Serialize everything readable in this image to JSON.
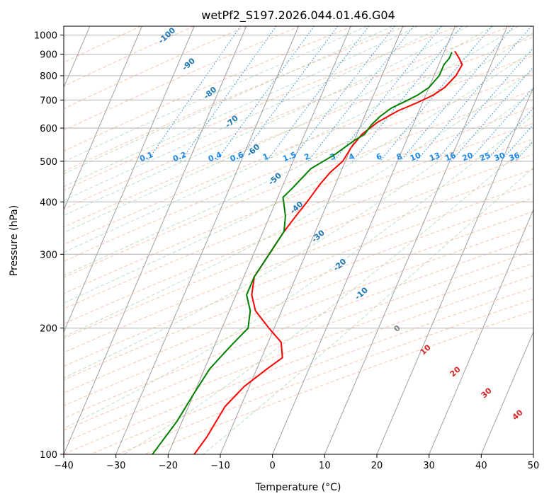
{
  "chart_data": {
    "type": "line",
    "title": "wetPf2_S197.2026.044.01.46.G04",
    "xlabel": "Temperature (°C)",
    "ylabel": "Pressure (hPa)",
    "xlim": [
      -40,
      50
    ],
    "ylim": [
      1050,
      100
    ],
    "y_scale": "log",
    "grid": true,
    "x_ticks": [
      -40,
      -30,
      -20,
      -10,
      0,
      10,
      20,
      30,
      40,
      50
    ],
    "y_ticks": [
      100,
      200,
      300,
      400,
      500,
      600,
      700,
      800,
      900,
      1000
    ],
    "skew": true,
    "series": [
      {
        "color": "#ff0000",
        "x": [
          2,
          3.4,
          4.5,
          4.2,
          3,
          1.5,
          -1,
          -4,
          -7,
          -9,
          -10,
          -10.5,
          -12,
          -13,
          -14,
          -15,
          -16,
          -17,
          -18,
          -17,
          -15,
          -11,
          -7.5,
          -6,
          -8,
          -11,
          -13,
          -14,
          -15
        ],
        "y": [
          915,
          880,
          850,
          800,
          750,
          720,
          690,
          660,
          620,
          580,
          540,
          500,
          470,
          440,
          400,
          370,
          340,
          300,
          265,
          240,
          220,
          200,
          185,
          170,
          160,
          145,
          130,
          110,
          100
        ]
      },
      {
        "color": "#008000",
        "x": [
          1.5,
          1.5,
          1,
          1,
          0,
          -1.5,
          -3,
          -5.5,
          -7,
          -8,
          -8.5,
          -10,
          -12.5,
          -16,
          -18,
          -19,
          -18.5,
          -17,
          -16,
          -17,
          -18,
          -18,
          -16,
          -15,
          -17,
          -19,
          -20,
          -21,
          -23
        ],
        "y": [
          910,
          880,
          850,
          800,
          750,
          720,
          700,
          670,
          640,
          610,
          580,
          560,
          520,
          480,
          430,
          410,
          400,
          370,
          340,
          300,
          265,
          240,
          220,
          200,
          180,
          160,
          140,
          120,
          100
        ]
      }
    ],
    "dry_adiabat_labels": [
      "-100",
      "-90",
      "-80",
      "-70",
      "-60",
      "-50",
      "-40",
      "-30",
      "-20",
      "-10"
    ],
    "moist_adiabat_labels": [
      "0",
      "10",
      "20",
      "30",
      "40"
    ],
    "mixing_ratio_labels": [
      "0.1",
      "0.2",
      "0.4",
      "0.6",
      "1",
      "1.5",
      "2",
      "3",
      "4",
      "6",
      "8",
      "10",
      "13",
      "16",
      "20",
      "25",
      "30",
      "36"
    ]
  }
}
